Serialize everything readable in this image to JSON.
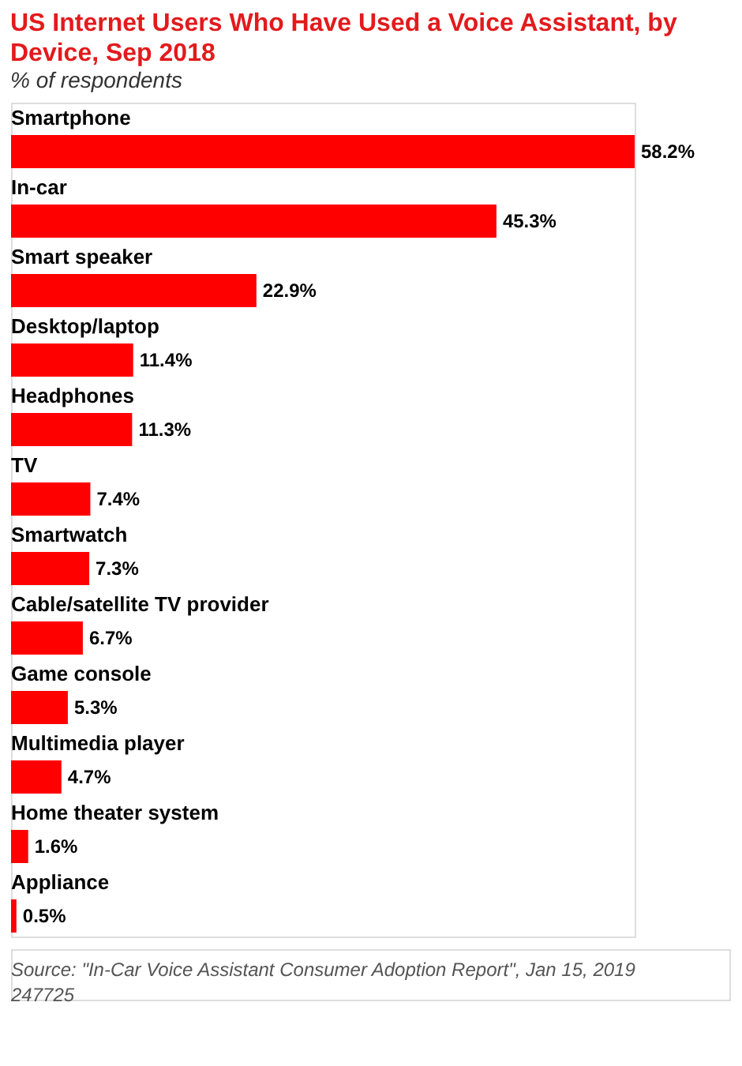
{
  "chart_data": {
    "type": "bar",
    "orientation": "horizontal",
    "title": "US Internet Users Who Have Used a Voice Assistant, by Device, Sep 2018",
    "subtitle": "% of respondents",
    "categories": [
      "Smartphone",
      "In-car",
      "Smart speaker",
      "Desktop/laptop",
      "Headphones",
      "TV",
      "Smartwatch",
      "Cable/satellite TV provider",
      "Game console",
      "Multimedia player",
      "Home theater system",
      "Appliance"
    ],
    "values": [
      58.2,
      45.3,
      22.9,
      11.4,
      11.3,
      7.4,
      7.3,
      6.7,
      5.3,
      4.7,
      1.6,
      0.5
    ],
    "value_labels": [
      "58.2%",
      "45.3%",
      "22.9%",
      "11.4%",
      "11.3%",
      "7.4%",
      "7.3%",
      "6.7%",
      "5.3%",
      "4.7%",
      "1.6%",
      "0.5%"
    ],
    "color": "#ff0000",
    "annotations": [
      "Source: \"In-Car Voice Assistant Consumer Adoption Report\", Jan 15, 2019",
      "247725"
    ]
  }
}
